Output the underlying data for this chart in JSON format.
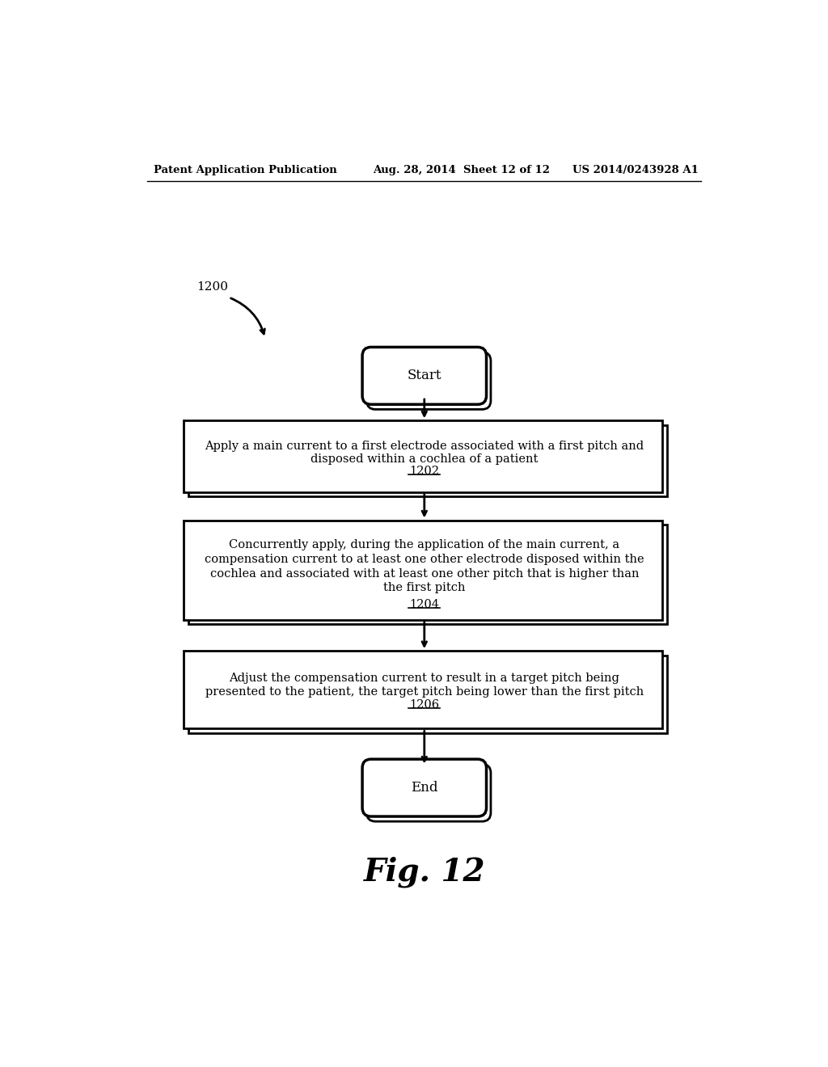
{
  "header_left": "Patent Application Publication",
  "header_center": "Aug. 28, 2014  Sheet 12 of 12",
  "header_right": "US 2014/0243928 A1",
  "diagram_label": "1200",
  "start_label": "Start",
  "end_label": "End",
  "box1_line1": "Apply a main current to a first electrode associated with a first pitch and",
  "box1_line2": "disposed within a cochlea of a patient",
  "box1_num": "1202",
  "box2_line1": "Concurrently apply, during the application of the main current, a",
  "box2_line2": "compensation current to at least one other electrode disposed within the",
  "box2_line3": "cochlea and associated with at least one other pitch that is higher than",
  "box2_line4": "the first pitch",
  "box2_num": "1204",
  "box3_line1": "Adjust the compensation current to result in a target pitch being",
  "box3_line2": "presented to the patient, the target pitch being lower than the first pitch",
  "box3_num": "1206",
  "fig_label": "Fig. 12",
  "bg_color": "#ffffff",
  "text_color": "#000000"
}
